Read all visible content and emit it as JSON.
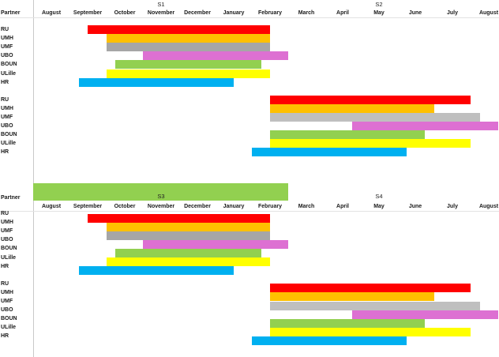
{
  "colors": {
    "RU": "#ff0000",
    "UMH": "#ffc000",
    "UMF": "#a6a6a6",
    "UBO": "#dd70d2",
    "BOUN": "#92d050",
    "ULille": "#ffff00",
    "HR": "#00b0f0",
    "grey_light": "#bfbfbf"
  },
  "chart_data": [
    {
      "type": "gantt",
      "header_label": "Partner",
      "semester_labels": [
        {
          "text": "S1",
          "month": "November"
        },
        {
          "text": "S2",
          "month": "May"
        }
      ],
      "months": [
        "August",
        "September",
        "October",
        "November",
        "December",
        "January",
        "February",
        "March",
        "April",
        "May",
        "June",
        "July",
        "August"
      ],
      "row_labels": [
        "RU",
        "UMH",
        "UMF",
        "UBO",
        "BOUN",
        "ULille",
        "HR",
        "",
        "RU",
        "UMH",
        "UMF",
        "UBO",
        "BOUN",
        "ULille",
        "HR"
      ],
      "bars": [
        {
          "row": 0,
          "start": 1.0,
          "end": 6.0,
          "color": "RU"
        },
        {
          "row": 1,
          "start": 1.5,
          "end": 6.0,
          "color": "UMH"
        },
        {
          "row": 2,
          "start": 1.5,
          "end": 6.0,
          "color": "UMF"
        },
        {
          "row": 3,
          "start": 2.5,
          "end": 6.5,
          "color": "UBO"
        },
        {
          "row": 4,
          "start": 1.75,
          "end": 5.75,
          "color": "BOUN"
        },
        {
          "row": 5,
          "start": 1.5,
          "end": 6.0,
          "color": "ULille"
        },
        {
          "row": 6,
          "start": 0.75,
          "end": 5.0,
          "color": "HR"
        },
        {
          "row": 8,
          "start": 6.0,
          "end": 11.5,
          "color": "RU"
        },
        {
          "row": 9,
          "start": 6.0,
          "end": 10.5,
          "color": "UMH"
        },
        {
          "row": 10,
          "start": 6.0,
          "end": 11.75,
          "color": "grey_light"
        },
        {
          "row": 11,
          "start": 8.25,
          "end": 12.25,
          "color": "UBO"
        },
        {
          "row": 12,
          "start": 6.0,
          "end": 10.25,
          "color": "BOUN"
        },
        {
          "row": 13,
          "start": 6.0,
          "end": 11.5,
          "color": "ULille"
        },
        {
          "row": 14,
          "start": 5.5,
          "end": 9.75,
          "color": "HR"
        }
      ]
    },
    {
      "type": "gantt",
      "header_label": "Partner",
      "semester_labels": [
        {
          "text": "S3",
          "month": "November"
        },
        {
          "text": "S4",
          "month": "May"
        }
      ],
      "months": [
        "August",
        "September",
        "October",
        "November",
        "December",
        "January",
        "February",
        "March",
        "April",
        "May",
        "June",
        "July",
        "August"
      ],
      "row_labels": [
        "RU",
        "UMH",
        "UMF",
        "UBO",
        "BOUN",
        "ULille",
        "HR",
        "",
        "RU",
        "UMH",
        "UMF",
        "UBO",
        "BOUN",
        "ULille",
        "HR"
      ],
      "header_bar": {
        "start": -0.5,
        "end": 6.5,
        "color": "BOUN"
      },
      "bars": [
        {
          "row": 0.5,
          "start": 1.0,
          "end": 6.0,
          "color": "RU"
        },
        {
          "row": 1.5,
          "start": 1.5,
          "end": 6.0,
          "color": "UMH"
        },
        {
          "row": 2.5,
          "start": 1.5,
          "end": 6.0,
          "color": "UMF"
        },
        {
          "row": 3.5,
          "start": 2.5,
          "end": 6.5,
          "color": "UBO"
        },
        {
          "row": 4.5,
          "start": 1.75,
          "end": 5.75,
          "color": "BOUN"
        },
        {
          "row": 5.5,
          "start": 1.5,
          "end": 6.0,
          "color": "ULille"
        },
        {
          "row": 6.5,
          "start": 0.75,
          "end": 5.0,
          "color": "HR"
        },
        {
          "row": 8.5,
          "start": 6.0,
          "end": 11.5,
          "color": "RU"
        },
        {
          "row": 9.5,
          "start": 6.0,
          "end": 10.5,
          "color": "UMH"
        },
        {
          "row": 10.5,
          "start": 6.0,
          "end": 11.75,
          "color": "grey_light"
        },
        {
          "row": 11.5,
          "start": 8.25,
          "end": 12.25,
          "color": "UBO"
        },
        {
          "row": 12.5,
          "start": 6.0,
          "end": 10.25,
          "color": "BOUN"
        },
        {
          "row": 13.5,
          "start": 6.0,
          "end": 11.5,
          "color": "ULille"
        },
        {
          "row": 14.5,
          "start": 5.5,
          "end": 9.75,
          "color": "HR"
        }
      ]
    }
  ]
}
